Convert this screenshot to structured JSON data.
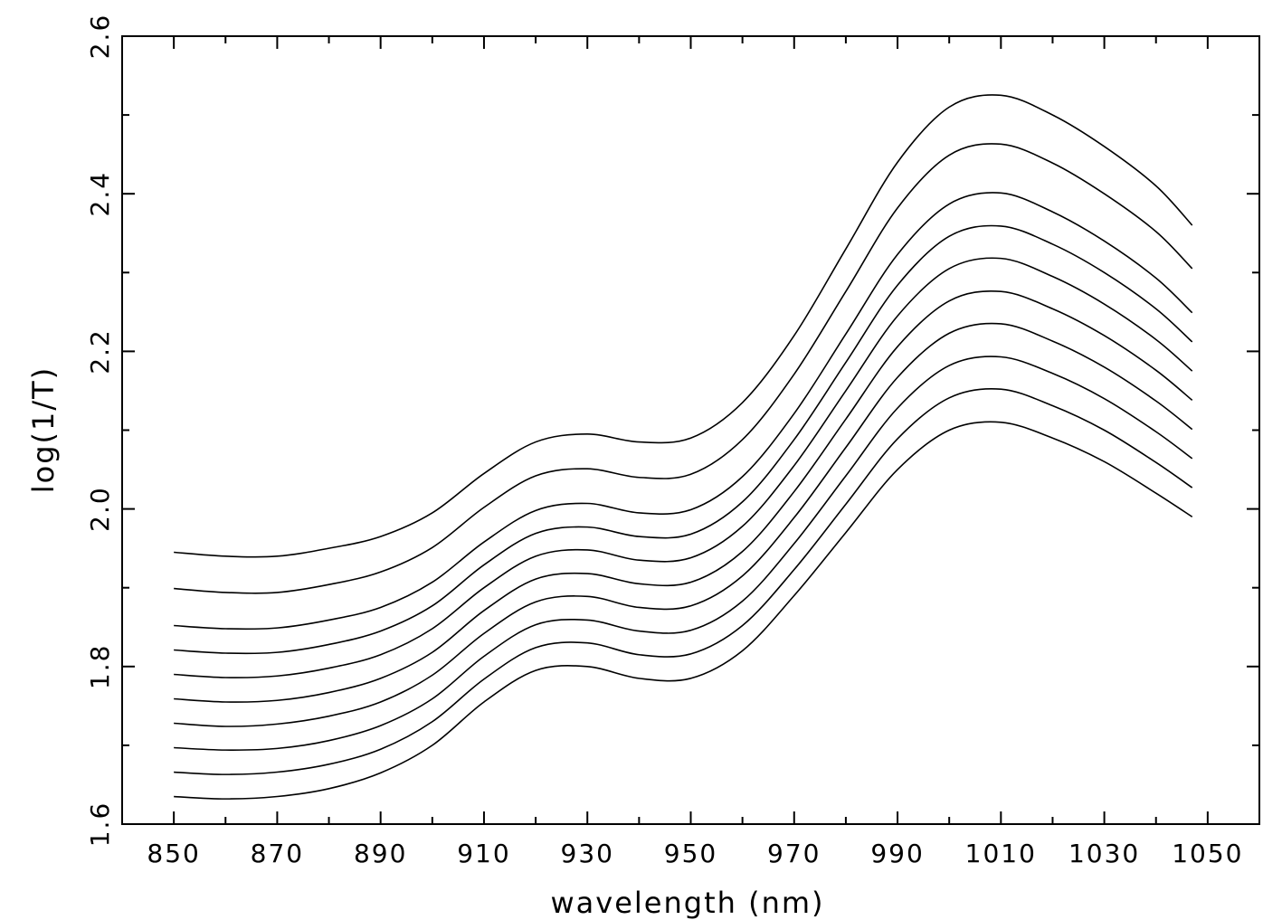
{
  "chart_data": {
    "type": "line",
    "x_label": "wavelength (nm)",
    "y_label": "log(1/T)",
    "color": "#000000",
    "x": [
      850,
      860,
      870,
      880,
      890,
      900,
      910,
      920,
      930,
      940,
      950,
      960,
      970,
      980,
      990,
      1000,
      1010,
      1020,
      1030,
      1040,
      1047
    ],
    "series": [
      {
        "values": [
          1.635,
          1.632,
          1.635,
          1.645,
          1.665,
          1.7,
          1.755,
          1.795,
          1.8,
          1.785,
          1.785,
          1.82,
          1.89,
          1.97,
          2.05,
          2.1,
          2.11,
          2.09,
          2.06,
          2.02,
          1.99
        ]
      },
      {
        "values": [
          1.666,
          1.663,
          1.666,
          1.676,
          1.695,
          1.73,
          1.784,
          1.824,
          1.83,
          1.815,
          1.816,
          1.852,
          1.923,
          2.006,
          2.089,
          2.141,
          2.152,
          2.131,
          2.1,
          2.059,
          2.027
        ]
      },
      {
        "values": [
          1.697,
          1.694,
          1.696,
          1.706,
          1.725,
          1.759,
          1.813,
          1.853,
          1.859,
          1.845,
          1.846,
          1.883,
          1.956,
          2.042,
          2.128,
          2.182,
          2.193,
          2.172,
          2.14,
          2.098,
          2.064
        ]
      },
      {
        "values": [
          1.728,
          1.724,
          1.727,
          1.737,
          1.755,
          1.789,
          1.842,
          1.882,
          1.889,
          1.875,
          1.877,
          1.915,
          1.989,
          2.078,
          2.167,
          2.223,
          2.235,
          2.213,
          2.18,
          2.137,
          2.101
        ]
      },
      {
        "values": [
          1.759,
          1.755,
          1.757,
          1.767,
          1.785,
          1.818,
          1.871,
          1.911,
          1.918,
          1.905,
          1.907,
          1.946,
          2.022,
          2.114,
          2.206,
          2.264,
          2.276,
          2.254,
          2.22,
          2.176,
          2.138
        ]
      },
      {
        "values": [
          1.79,
          1.786,
          1.788,
          1.798,
          1.815,
          1.848,
          1.9,
          1.94,
          1.948,
          1.935,
          1.938,
          1.978,
          2.055,
          2.15,
          2.245,
          2.305,
          2.318,
          2.295,
          2.26,
          2.215,
          2.175
        ]
      },
      {
        "values": [
          1.821,
          1.817,
          1.818,
          1.828,
          1.845,
          1.877,
          1.929,
          1.969,
          1.977,
          1.965,
          1.968,
          2.009,
          2.088,
          2.186,
          2.284,
          2.346,
          2.359,
          2.336,
          2.3,
          2.254,
          2.212
        ]
      },
      {
        "values": [
          1.852,
          1.848,
          1.849,
          1.859,
          1.875,
          1.907,
          1.958,
          1.998,
          2.007,
          1.995,
          1.999,
          2.041,
          2.121,
          2.222,
          2.323,
          2.387,
          2.401,
          2.377,
          2.34,
          2.293,
          2.249
        ]
      },
      {
        "values": [
          1.899,
          1.894,
          1.894,
          1.904,
          1.92,
          1.951,
          2.002,
          2.042,
          2.051,
          2.04,
          2.044,
          2.088,
          2.171,
          2.276,
          2.382,
          2.449,
          2.463,
          2.439,
          2.4,
          2.352,
          2.305
        ]
      },
      {
        "values": [
          1.945,
          1.94,
          1.94,
          1.95,
          1.965,
          1.995,
          2.045,
          2.085,
          2.095,
          2.085,
          2.09,
          2.135,
          2.22,
          2.33,
          2.44,
          2.51,
          2.525,
          2.5,
          2.46,
          2.41,
          2.36
        ]
      }
    ],
    "xlim": [
      840,
      1060
    ],
    "ylim": [
      1.6,
      2.6
    ],
    "xticks": [
      850,
      870,
      890,
      910,
      930,
      950,
      970,
      990,
      1010,
      1030,
      1050
    ],
    "x_minor_ticks": [
      860,
      880,
      900,
      920,
      940,
      960,
      980,
      1000,
      1020,
      1040
    ],
    "yticks": [
      1.6,
      1.8,
      {
        "value": 2,
        "label": "2.0"
      },
      2.2,
      2.4,
      2.6
    ],
    "y_minor_ticks": [
      1.7,
      1.9,
      2.1,
      2.3,
      2.5
    ],
    "grid": false
  }
}
